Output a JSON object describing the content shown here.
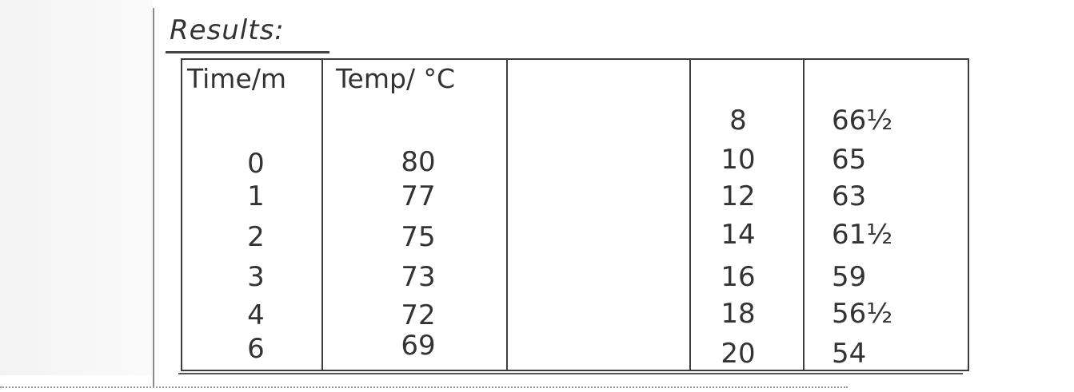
{
  "heading": "Results:",
  "headers": {
    "time": "Time/m",
    "temp": "Temp/ °C"
  },
  "left_rows": [
    {
      "time": "0",
      "temp": "80"
    },
    {
      "time": "1",
      "temp": "77"
    },
    {
      "time": "2",
      "temp": "75"
    },
    {
      "time": "3",
      "temp": "73"
    },
    {
      "time": "4",
      "temp": "72"
    },
    {
      "time": "6",
      "temp": "69"
    }
  ],
  "right_rows": [
    {
      "time": "8",
      "temp": "66½"
    },
    {
      "time": "10",
      "temp": "65"
    },
    {
      "time": "12",
      "temp": "63"
    },
    {
      "time": "14",
      "temp": "61½"
    },
    {
      "time": "16",
      "temp": "59"
    },
    {
      "time": "18",
      "temp": "56½"
    },
    {
      "time": "20",
      "temp": "54"
    }
  ]
}
